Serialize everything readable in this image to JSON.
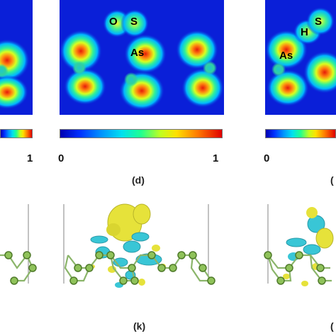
{
  "figure": {
    "maps": [
      {
        "id": "left-partial",
        "atom_labels": []
      },
      {
        "id": "middle",
        "atom_labels": [
          "O",
          "S",
          "As"
        ]
      },
      {
        "id": "right-partial",
        "atom_labels": [
          "H",
          "S",
          "As"
        ]
      }
    ],
    "colorbars": [
      {
        "id": "left",
        "min_label": "",
        "max_label": "1"
      },
      {
        "id": "middle",
        "min_label": "0",
        "max_label": "1"
      },
      {
        "id": "right",
        "min_label": "0",
        "max_label": ""
      }
    ],
    "panel_labels": {
      "d": "(d)",
      "d_partial": "(",
      "k": "(k)",
      "k_partial": "("
    },
    "colors": {
      "map_background": "#0a1fd8",
      "isosurface_yellow": "#e6e23a",
      "isosurface_cyan": "#39c6d6",
      "atom_green": "#8fc25a",
      "bond_green": "#8bb56a"
    }
  }
}
